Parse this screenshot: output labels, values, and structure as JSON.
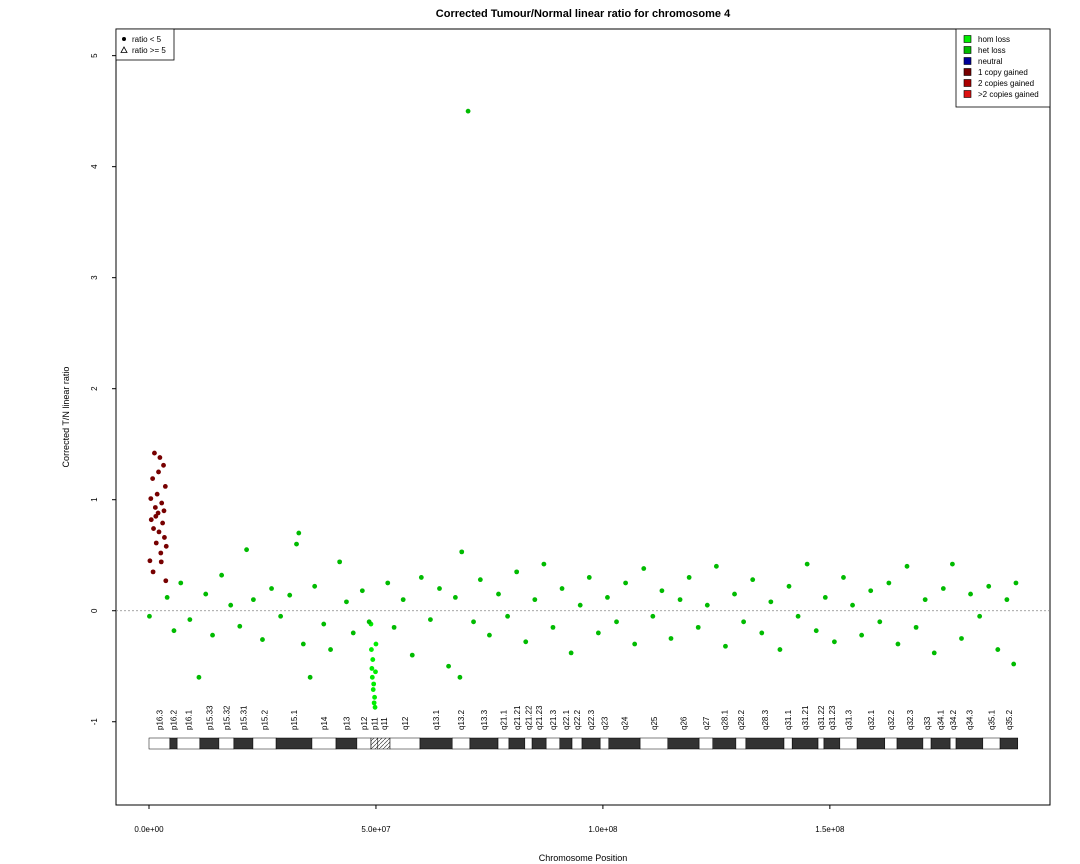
{
  "chart_data": {
    "type": "scatter",
    "title": "Corrected Tumour/Normal linear ratio for chromosome  4",
    "x_label": "Chromosome Position",
    "y_label": "Corrected T/N linear ratio",
    "xlim": [
      -7270000,
      198500000
    ],
    "ylim": [
      -1.75,
      5.24
    ],
    "xticks": [
      {
        "value": 0,
        "label": "0.0e+00"
      },
      {
        "value": 50000000,
        "label": "5.0e+07"
      },
      {
        "value": 100000000,
        "label": "1.0e+08"
      },
      {
        "value": 150000000,
        "label": "1.5e+08"
      }
    ],
    "yticks": [
      -1,
      0,
      1,
      2,
      3,
      4,
      5
    ],
    "reference_line": 0,
    "legend_position": "top-right",
    "shape_legend_position": "top-left",
    "shape_legend": [
      {
        "label": "ratio < 5",
        "shape": "circle"
      },
      {
        "label": "ratio >= 5",
        "shape": "triangle"
      }
    ],
    "series": [
      {
        "name": "hom loss",
        "color": "#00ee00",
        "x": [
          48900000,
          49000000,
          49100000,
          49200000,
          49300000,
          49400000,
          49500000,
          49600000,
          49700000,
          49800000,
          49900000,
          50000000
        ],
        "values": [
          -0.12,
          -0.35,
          -0.52,
          -0.6,
          -0.44,
          -0.71,
          -0.66,
          -0.83,
          -0.78,
          -0.87,
          -0.55,
          -0.3
        ]
      },
      {
        "name": "het loss",
        "color": "#00bb00",
        "x": [
          100000,
          4000000,
          5500000,
          7000000,
          9000000,
          11000000,
          12500000,
          14000000,
          16000000,
          18000000,
          20000000,
          21500000,
          23000000,
          25000000,
          27000000,
          29000000,
          31000000,
          32500000,
          33000000,
          34000000,
          35500000,
          36500000,
          38500000,
          40000000,
          42000000,
          43500000,
          45000000,
          47000000,
          48500000,
          52600000,
          54000000,
          56000000,
          58000000,
          60000000,
          62000000,
          64000000,
          66000000,
          67500000,
          68500000,
          68900000,
          70300000,
          71500000,
          73000000,
          75000000,
          77000000,
          79000000,
          81000000,
          83000000,
          85000000,
          87000000,
          89000000,
          91000000,
          93000000,
          95000000,
          97000000,
          99000000,
          101000000,
          103000000,
          105000000,
          107000000,
          109000000,
          111000000,
          113000000,
          115000000,
          117000000,
          119000000,
          121000000,
          123000000,
          125000000,
          127000000,
          129000000,
          131000000,
          133000000,
          135000000,
          137000000,
          139000000,
          141000000,
          143000000,
          145000000,
          147000000,
          149000000,
          151000000,
          153000000,
          155000000,
          157000000,
          159000000,
          161000000,
          163000000,
          165000000,
          167000000,
          169000000,
          171000000,
          173000000,
          175000000,
          177000000,
          179000000,
          181000000,
          183000000,
          185000000,
          187000000,
          189000000,
          190500000,
          191000000
        ],
        "values": [
          -0.05,
          0.12,
          -0.18,
          0.25,
          -0.08,
          -0.6,
          0.15,
          -0.22,
          0.32,
          0.05,
          -0.14,
          0.55,
          0.1,
          -0.26,
          0.2,
          -0.05,
          0.14,
          0.6,
          0.7,
          -0.3,
          -0.6,
          0.22,
          -0.12,
          -0.35,
          0.44,
          0.08,
          -0.2,
          0.18,
          -0.1,
          0.25,
          -0.15,
          0.1,
          -0.4,
          0.3,
          -0.08,
          0.2,
          -0.5,
          0.12,
          -0.6,
          0.53,
          4.5,
          -0.1,
          0.28,
          -0.22,
          0.15,
          -0.05,
          0.35,
          -0.28,
          0.1,
          0.42,
          -0.15,
          0.2,
          -0.38,
          0.05,
          0.3,
          -0.2,
          0.12,
          -0.1,
          0.25,
          -0.3,
          0.38,
          -0.05,
          0.18,
          -0.25,
          0.1,
          0.3,
          -0.15,
          0.05,
          0.4,
          -0.32,
          0.15,
          -0.1,
          0.28,
          -0.2,
          0.08,
          -0.35,
          0.22,
          -0.05,
          0.42,
          -0.18,
          0.12,
          -0.28,
          0.3,
          0.05,
          -0.22,
          0.18,
          -0.1,
          0.25,
          -0.3,
          0.4,
          -0.15,
          0.1,
          -0.38,
          0.2,
          0.42,
          -0.25,
          0.15,
          -0.05,
          0.22,
          -0.35,
          0.1,
          -0.48,
          0.25
        ]
      },
      {
        "name": "neutral",
        "color": "#000099",
        "x": [],
        "values": []
      },
      {
        "name": "1 copy gained",
        "color": "#770000",
        "x": [
          200000,
          500000,
          800000,
          1000000,
          1200000,
          1400000,
          1600000,
          1800000,
          2000000,
          2200000,
          2400000,
          2600000,
          2800000,
          3000000,
          3200000,
          3400000,
          3600000,
          3800000,
          400000,
          900000,
          1500000,
          2100000,
          2700000,
          3300000,
          3700000
        ],
        "values": [
          0.45,
          0.82,
          1.19,
          0.74,
          1.42,
          0.93,
          0.61,
          1.05,
          0.88,
          0.71,
          1.38,
          0.52,
          0.97,
          0.79,
          1.31,
          0.66,
          1.12,
          0.58,
          1.01,
          0.35,
          0.85,
          1.25,
          0.44,
          0.9,
          0.27
        ]
      },
      {
        "name": "2 copies gained",
        "color": "#aa0000",
        "x": [],
        "values": []
      },
      {
        "name": ">2 copies gained",
        "color": "#dd1111",
        "x": [],
        "values": []
      }
    ],
    "ideogram": [
      {
        "name": "p16.3",
        "start": 0,
        "end": 4600000,
        "stain": "gneg"
      },
      {
        "name": "p16.2",
        "start": 4600000,
        "end": 6200000,
        "stain": "gpos"
      },
      {
        "name": "p16.1",
        "start": 6200000,
        "end": 11200000,
        "stain": "gneg"
      },
      {
        "name": "p15.33",
        "start": 11200000,
        "end": 15400000,
        "stain": "gpos"
      },
      {
        "name": "p15.32",
        "start": 15400000,
        "end": 18700000,
        "stain": "gneg"
      },
      {
        "name": "p15.31",
        "start": 18700000,
        "end": 22900000,
        "stain": "gpos"
      },
      {
        "name": "p15.2",
        "start": 22900000,
        "end": 28000000,
        "stain": "gneg"
      },
      {
        "name": "p15.1",
        "start": 28000000,
        "end": 35900000,
        "stain": "gpos"
      },
      {
        "name": "p14",
        "start": 35900000,
        "end": 41200000,
        "stain": "gneg"
      },
      {
        "name": "p13",
        "start": 41200000,
        "end": 45800000,
        "stain": "gpos"
      },
      {
        "name": "p12",
        "start": 45800000,
        "end": 48900000,
        "stain": "gneg"
      },
      {
        "name": "p11",
        "start": 48900000,
        "end": 50400000,
        "stain": "acen"
      },
      {
        "name": "q11",
        "start": 50400000,
        "end": 53100000,
        "stain": "acen"
      },
      {
        "name": "q12",
        "start": 53100000,
        "end": 59700000,
        "stain": "gneg"
      },
      {
        "name": "q13.1",
        "start": 59700000,
        "end": 66800000,
        "stain": "gpos"
      },
      {
        "name": "q13.2",
        "start": 66800000,
        "end": 70700000,
        "stain": "gneg"
      },
      {
        "name": "q13.3",
        "start": 70700000,
        "end": 76900000,
        "stain": "gpos"
      },
      {
        "name": "q21.1",
        "start": 76900000,
        "end": 79300000,
        "stain": "gneg"
      },
      {
        "name": "q21.21",
        "start": 79300000,
        "end": 82800000,
        "stain": "gpos"
      },
      {
        "name": "q21.22",
        "start": 82800000,
        "end": 84400000,
        "stain": "gneg"
      },
      {
        "name": "q21.23",
        "start": 84400000,
        "end": 87500000,
        "stain": "gpos"
      },
      {
        "name": "q21.3",
        "start": 87500000,
        "end": 90500000,
        "stain": "gneg"
      },
      {
        "name": "q22.1",
        "start": 90500000,
        "end": 93200000,
        "stain": "gpos"
      },
      {
        "name": "q22.2",
        "start": 93200000,
        "end": 95400000,
        "stain": "gneg"
      },
      {
        "name": "q22.3",
        "start": 95400000,
        "end": 99400000,
        "stain": "gpos"
      },
      {
        "name": "q23",
        "start": 99400000,
        "end": 101300000,
        "stain": "gneg"
      },
      {
        "name": "q24",
        "start": 101300000,
        "end": 108200000,
        "stain": "gpos"
      },
      {
        "name": "q25",
        "start": 108200000,
        "end": 114300000,
        "stain": "gneg"
      },
      {
        "name": "q26",
        "start": 114300000,
        "end": 121200000,
        "stain": "gpos"
      },
      {
        "name": "q27",
        "start": 121200000,
        "end": 124200000,
        "stain": "gneg"
      },
      {
        "name": "q28.1",
        "start": 124200000,
        "end": 129300000,
        "stain": "gpos"
      },
      {
        "name": "q28.2",
        "start": 129300000,
        "end": 131500000,
        "stain": "gneg"
      },
      {
        "name": "q28.3",
        "start": 131500000,
        "end": 139900000,
        "stain": "gpos"
      },
      {
        "name": "q31.1",
        "start": 139900000,
        "end": 141700000,
        "stain": "gneg"
      },
      {
        "name": "q31.21",
        "start": 141700000,
        "end": 147400000,
        "stain": "gpos"
      },
      {
        "name": "q31.22",
        "start": 147400000,
        "end": 148700000,
        "stain": "gneg"
      },
      {
        "name": "q31.23",
        "start": 148700000,
        "end": 152200000,
        "stain": "gpos"
      },
      {
        "name": "q31.3",
        "start": 152200000,
        "end": 156000000,
        "stain": "gneg"
      },
      {
        "name": "q32.1",
        "start": 156000000,
        "end": 162100000,
        "stain": "gpos"
      },
      {
        "name": "q32.2",
        "start": 162100000,
        "end": 164800000,
        "stain": "gneg"
      },
      {
        "name": "q32.3",
        "start": 164800000,
        "end": 170500000,
        "stain": "gpos"
      },
      {
        "name": "q33",
        "start": 170500000,
        "end": 172300000,
        "stain": "gneg"
      },
      {
        "name": "q34.1",
        "start": 172300000,
        "end": 176500000,
        "stain": "gpos"
      },
      {
        "name": "q34.2",
        "start": 176500000,
        "end": 177800000,
        "stain": "gneg"
      },
      {
        "name": "q34.3",
        "start": 177800000,
        "end": 183700000,
        "stain": "gpos"
      },
      {
        "name": "q35.1",
        "start": 183700000,
        "end": 187500000,
        "stain": "gneg"
      },
      {
        "name": "q35.2",
        "start": 187500000,
        "end": 191400000,
        "stain": "gpos"
      }
    ]
  }
}
